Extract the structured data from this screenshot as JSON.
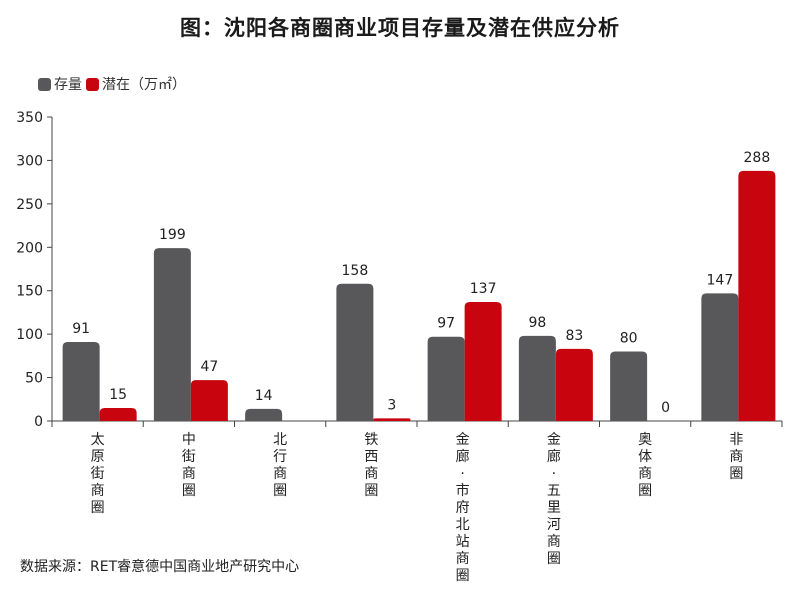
{
  "title": "图：沈阳各商圈商业项目存量及潜在供应分析",
  "source": "数据来源：RET睿意德中国商业地产研究中心",
  "legend": {
    "stock_label": "存量",
    "potential_label": "潜在（万㎡）"
  },
  "colors": {
    "stock": "#58585a",
    "potential": "#c8050e",
    "axis": "#444444"
  },
  "chart_data": {
    "type": "bar",
    "categories": [
      "太原街商圈",
      "中街商圈",
      "北行商圈",
      "铁西商圈",
      "金廊·市府北站商圈",
      "金廊·五里河商圈",
      "奥体商圈",
      "非商圈"
    ],
    "series": [
      {
        "name": "存量",
        "values": [
          91,
          199,
          14,
          158,
          97,
          98,
          80,
          147
        ],
        "labels": [
          "91",
          "199",
          "14",
          "158",
          "97",
          "98",
          "80",
          "147"
        ]
      },
      {
        "name": "潜在（万㎡）",
        "values": [
          15,
          47,
          null,
          3,
          137,
          83,
          0,
          288
        ],
        "labels": [
          "15",
          "47",
          "",
          "3",
          "137",
          "83",
          "0",
          "288"
        ]
      }
    ],
    "ylim": [
      0,
      350
    ],
    "yticks": [
      "0",
      "50",
      "100",
      "150",
      "200",
      "250",
      "300",
      "350"
    ],
    "ytick_values": [
      0,
      50,
      100,
      150,
      200,
      250,
      300,
      350
    ],
    "legend_position": "top-left",
    "grid": false
  }
}
